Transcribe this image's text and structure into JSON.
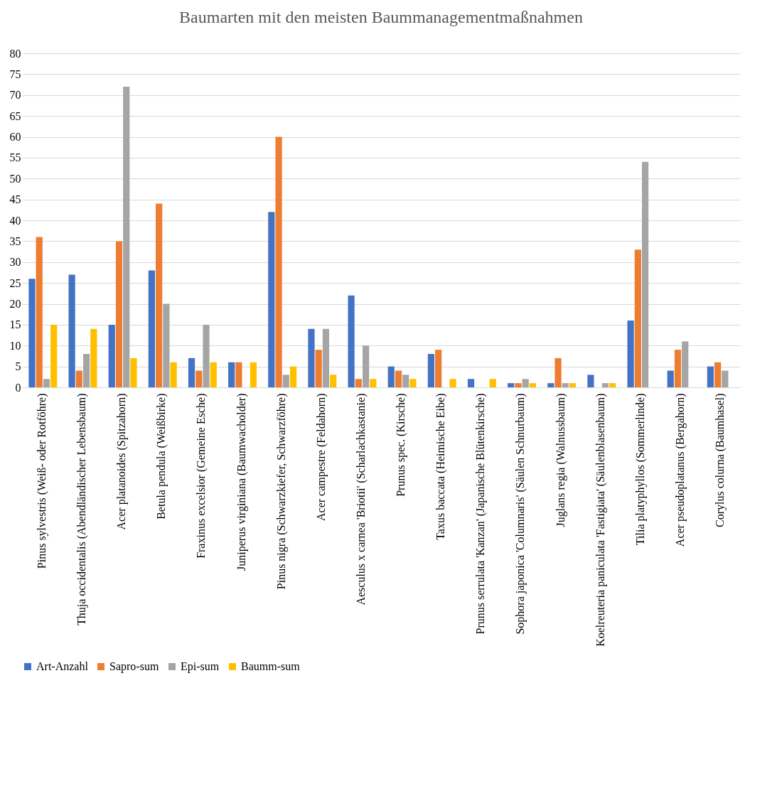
{
  "chart_data": {
    "type": "bar",
    "title": "Baumarten mit den meisten Baummanagementmaßnahmen",
    "categories": [
      "Pinus sylvestris (Weiß- oder Rotföhre)",
      "Thuja occidentalis (Abendländischer Lebensbaum)",
      "Acer platanoides (Spitzahorn)",
      "Betula pendula (Weißbirke)",
      "Fraxinus excelsior (Gemeine Esche)",
      "Juniperus virginiana (Baumwacholder)",
      "Pinus nigra (Schwarzkiefer, Schwarzföhre)",
      "Acer campestre (Feldahorn)",
      "Aesculus x carnea 'Briotii' (Scharlachkastanie)",
      "Prunus spec. (Kirsche)",
      "Taxus baccata (Heimische Eibe)",
      "Prunus serrulata 'Kanzan' (Japanische Blütenkirsche)",
      "Sophora japonica 'Columnaris' (Säulen Schnurbaum)",
      "Juglans regia (Walnussbaum)",
      "Koelreuteria paniculata 'Fastigiata' (Säulenblasenbaum)",
      "Tilia platyphyllos (Sommerlinde)",
      "Acer pseudoplatanus (Bergahorn)",
      "Corylus colurna (Baumhasel)"
    ],
    "series": [
      {
        "name": "Art-Anzahl",
        "color": "#4472c4",
        "values": [
          26,
          27,
          15,
          28,
          7,
          6,
          42,
          14,
          22,
          5,
          8,
          2,
          1,
          1,
          3,
          16,
          4,
          5
        ]
      },
      {
        "name": "Sapro-sum",
        "color": "#ed7d31",
        "values": [
          36,
          4,
          35,
          44,
          4,
          6,
          60,
          9,
          2,
          4,
          9,
          0,
          1,
          7,
          0,
          33,
          9,
          6
        ]
      },
      {
        "name": "Epi-sum",
        "color": "#a5a5a5",
        "values": [
          2,
          8,
          72,
          20,
          15,
          0,
          3,
          14,
          10,
          3,
          0,
          0,
          2,
          1,
          1,
          54,
          11,
          4
        ]
      },
      {
        "name": "Baumm-sum",
        "color": "#ffc000",
        "values": [
          15,
          14,
          7,
          6,
          6,
          6,
          5,
          3,
          2,
          2,
          2,
          2,
          1,
          1,
          1,
          0,
          0,
          0
        ]
      }
    ],
    "ylim": [
      0,
      80
    ],
    "yticks": [
      0,
      5,
      10,
      15,
      20,
      25,
      30,
      35,
      40,
      45,
      50,
      55,
      60,
      65,
      70,
      75,
      80
    ],
    "grid": "y",
    "legend": "bottom"
  }
}
